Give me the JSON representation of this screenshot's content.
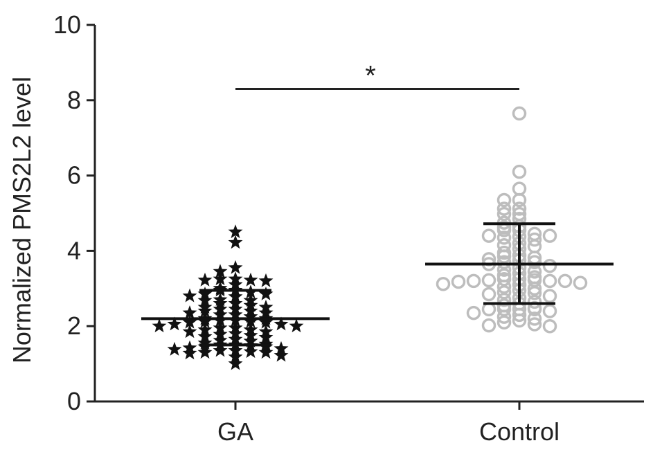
{
  "chart_data": {
    "type": "scatter",
    "title": "",
    "xlabel": "",
    "ylabel": "Normalized PMS2L2 level",
    "ylim": [
      0,
      10
    ],
    "yticks": [
      "0",
      "2",
      "4",
      "6",
      "8",
      "10"
    ],
    "categories": [
      "GA",
      "Control"
    ],
    "grid": false,
    "legend": "none",
    "significance": {
      "label": "*",
      "between": [
        "GA",
        "Control"
      ],
      "y": 8.3
    },
    "series": [
      {
        "category": "GA",
        "marker": "star",
        "color": "#111111",
        "mean": 2.2,
        "sd_upper": 2.95,
        "sd_lower": 1.5,
        "values": [
          4.5,
          4.22,
          3.55,
          3.45,
          3.25,
          3.25,
          3.22,
          3.22,
          3.2,
          3.1,
          3.0,
          2.95,
          2.95,
          2.9,
          2.85,
          2.85,
          2.8,
          2.78,
          2.7,
          2.68,
          2.68,
          2.6,
          2.6,
          2.55,
          2.5,
          2.5,
          2.45,
          2.45,
          2.4,
          2.4,
          2.35,
          2.35,
          2.3,
          2.3,
          2.25,
          2.2,
          2.2,
          2.15,
          2.15,
          2.12,
          2.12,
          2.1,
          2.1,
          2.05,
          2.05,
          2.0,
          2.0,
          1.95,
          1.95,
          1.9,
          1.9,
          1.85,
          1.85,
          1.8,
          1.78,
          1.75,
          1.72,
          1.7,
          1.65,
          1.62,
          1.6,
          1.55,
          1.52,
          1.5,
          1.5,
          1.48,
          1.45,
          1.45,
          1.42,
          1.4,
          1.38,
          1.35,
          1.35,
          1.32,
          1.3,
          1.3,
          1.28,
          1.22,
          1.18,
          1.0
        ]
      },
      {
        "category": "Control",
        "marker": "open-circle",
        "color": "#bdbdbd",
        "mean": 3.65,
        "sd_upper": 4.72,
        "sd_lower": 2.6,
        "values": [
          7.65,
          6.1,
          5.65,
          5.35,
          5.35,
          5.12,
          5.12,
          4.98,
          4.98,
          4.85,
          4.75,
          4.65,
          4.62,
          4.55,
          4.55,
          4.45,
          4.4,
          4.4,
          4.38,
          4.35,
          4.3,
          4.2,
          4.15,
          4.12,
          4.05,
          3.95,
          3.88,
          3.85,
          3.82,
          3.78,
          3.75,
          3.7,
          3.7,
          3.65,
          3.6,
          3.55,
          3.5,
          3.45,
          3.4,
          3.35,
          3.3,
          3.25,
          3.25,
          3.22,
          3.22,
          3.2,
          3.2,
          3.2,
          3.18,
          3.15,
          3.12,
          3.1,
          3.05,
          3.0,
          2.95,
          2.9,
          2.88,
          2.85,
          2.8,
          2.75,
          2.7,
          2.65,
          2.6,
          2.55,
          2.48,
          2.45,
          2.45,
          2.45,
          2.45,
          2.4,
          2.35,
          2.3,
          2.25,
          2.2,
          2.15,
          2.1,
          2.05,
          2.02,
          2.0
        ]
      }
    ]
  }
}
